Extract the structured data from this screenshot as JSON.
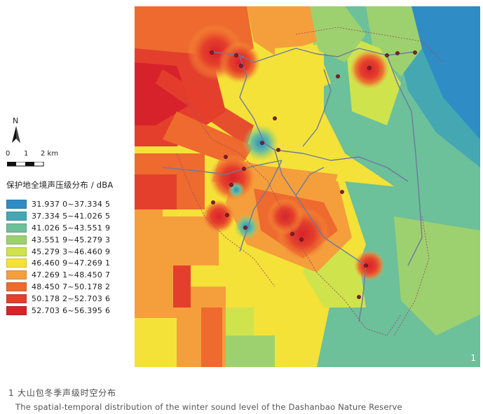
{
  "figure": {
    "panel_number": "1",
    "north_label": "N",
    "scale": {
      "ticks": [
        "0",
        "1",
        "2 km"
      ]
    },
    "legend": {
      "title": "保护地全境声压级分布 / dBA",
      "items": [
        {
          "label": "31.937 0~37.334 5",
          "color": "#2f8cc4"
        },
        {
          "label": "37.334 5~41.026 5",
          "color": "#45a7b2"
        },
        {
          "label": "41.026 5~43.551 9",
          "color": "#6cc09a"
        },
        {
          "label": "43.551 9~45.279 3",
          "color": "#9dd16f"
        },
        {
          "label": "45.279 3~46.460 9",
          "color": "#cfe34d"
        },
        {
          "label": "46.460 9~47.269 1",
          "color": "#f4e238"
        },
        {
          "label": "47.269 1~48.450 7",
          "color": "#f59f3c"
        },
        {
          "label": "48.450 7~50.178 2",
          "color": "#ee6a2e"
        },
        {
          "label": "50.178 2~52.703 6",
          "color": "#e43f2c"
        },
        {
          "label": "52.703 6~56.395 6",
          "color": "#d8222b"
        }
      ]
    },
    "caption_cn": "1 大山包冬季声级时空分布",
    "caption_en": "The spatial-temporal distribution of the winter sound level of the Dashanbao Nature Reserve"
  }
}
